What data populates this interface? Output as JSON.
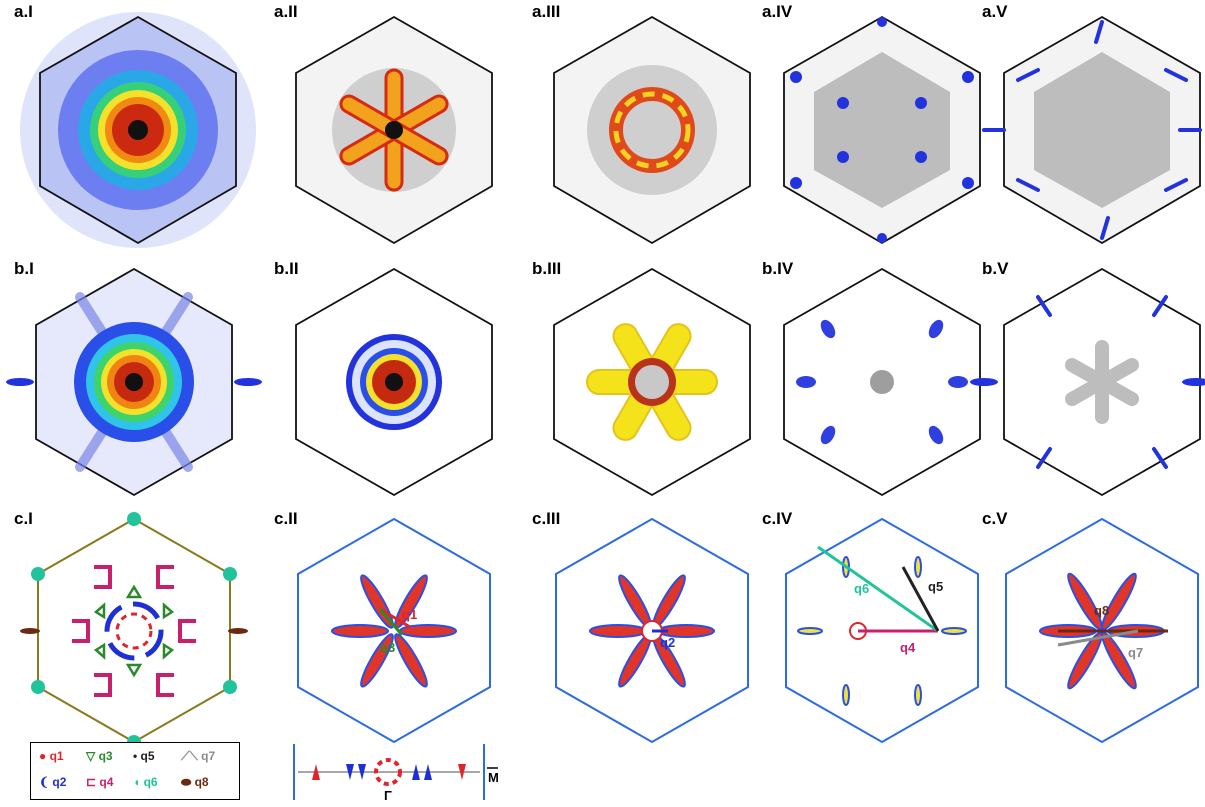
{
  "colors": {
    "hex_black": "#111111",
    "hex_blue": "#2c6be0",
    "hex_olive": "#8a7a1e",
    "q1": "#e0242c",
    "q2": "#1f2fd6",
    "q3": "#2a8a2a",
    "q4": "#c8206c",
    "q5": "#222222",
    "q6": "#21c49a",
    "q7": "#8a8a8a",
    "q8": "#6b2a10"
  },
  "panels": {
    "aI": {
      "label": "a.I"
    },
    "aII": {
      "label": "a.II"
    },
    "aIII": {
      "label": "a.III"
    },
    "aIV": {
      "label": "a.IV"
    },
    "aV": {
      "label": "a.V"
    },
    "bI": {
      "label": "b.I"
    },
    "bII": {
      "label": "b.II"
    },
    "bIII": {
      "label": "b.III"
    },
    "bIV": {
      "label": "b.IV"
    },
    "bV": {
      "label": "b.V"
    },
    "cI": {
      "label": "c.I"
    },
    "cII": {
      "label": "c.II"
    },
    "cIII": {
      "label": "c.III"
    },
    "cIV": {
      "label": "c.IV"
    },
    "cV": {
      "label": "c.V"
    }
  },
  "vectors": {
    "q1": "q1",
    "q2": "q2",
    "q3": "q3",
    "q4": "q4",
    "q5": "q5",
    "q6": "q6",
    "q7": "q7",
    "q8": "q8"
  },
  "legend": {
    "q1": "q1",
    "q2": "q2",
    "q3": "q3",
    "q4": "q4",
    "q5": "q5",
    "q6": "q6",
    "q7": "q7",
    "q8": "q8"
  },
  "strip": {
    "gamma": "Γ",
    "m": "M"
  }
}
